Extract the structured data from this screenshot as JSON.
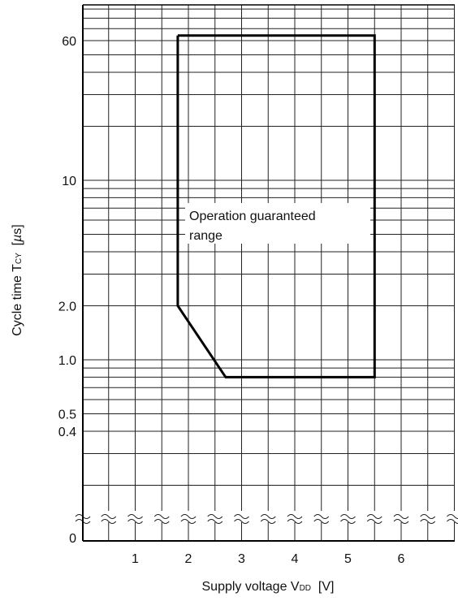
{
  "chart_data": {
    "type": "line",
    "title": "",
    "xlabel": {
      "main": "Supply voltage V",
      "sub": "DD",
      "unit": "  [V]"
    },
    "ylabel": {
      "main": "Cycle time T",
      "sub": "CY",
      "unit_open": "  [",
      "unit_mu": "µ",
      "unit_rest": "s]"
    },
    "x_ticks": [
      "1",
      "2",
      "3",
      "4",
      "5",
      "6"
    ],
    "y_ticks": [
      {
        "value": 60,
        "label": "60"
      },
      {
        "value": 10,
        "label": "10"
      },
      {
        "value": 2.0,
        "label": "2.0"
      },
      {
        "value": 1.0,
        "label": "1.0"
      },
      {
        "value": 0.5,
        "label": "0.5"
      },
      {
        "value": 0.4,
        "label": "0.4"
      },
      {
        "value": 0,
        "label": "0"
      }
    ],
    "y_scale": "log",
    "axis_break": "between 0 and the lowest gridline",
    "xlim": [
      0,
      7
    ],
    "grid": true,
    "region": {
      "name": "Operation guaranteed range",
      "label_line1": "Operation guaranteed",
      "label_line2": "range",
      "points": [
        {
          "x": 1.8,
          "y": 64
        },
        {
          "x": 5.5,
          "y": 64
        },
        {
          "x": 5.5,
          "y": 0.8
        },
        {
          "x": 2.7,
          "y": 0.8
        },
        {
          "x": 1.8,
          "y": 2.0
        },
        {
          "x": 1.8,
          "y": 64
        }
      ]
    }
  }
}
